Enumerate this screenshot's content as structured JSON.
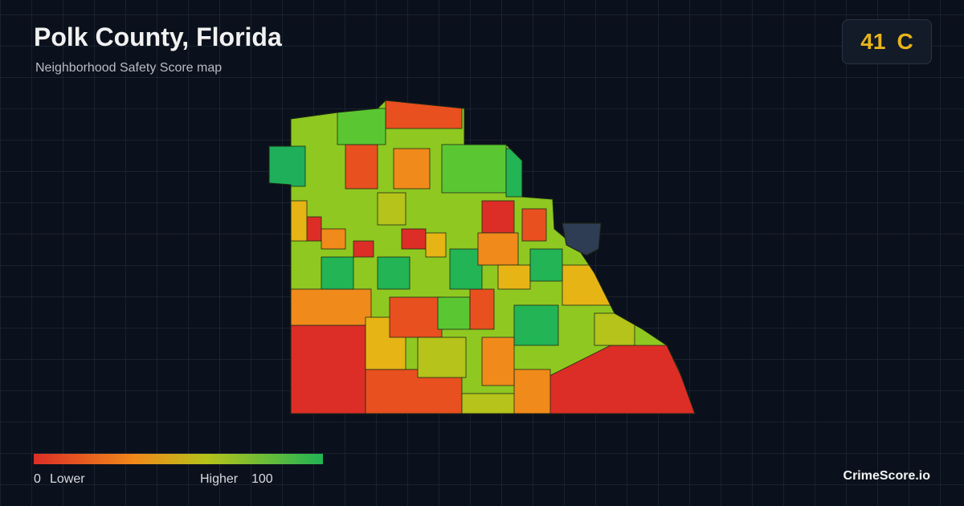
{
  "header": {
    "title": "Polk County, Florida",
    "subtitle": "Neighborhood Safety Score map"
  },
  "score": {
    "value": 41,
    "grade": "C"
  },
  "legend": {
    "min": 0,
    "min_label": "Lower",
    "max_label": "Higher",
    "max": 100
  },
  "brand": "CrimeScore.io"
}
